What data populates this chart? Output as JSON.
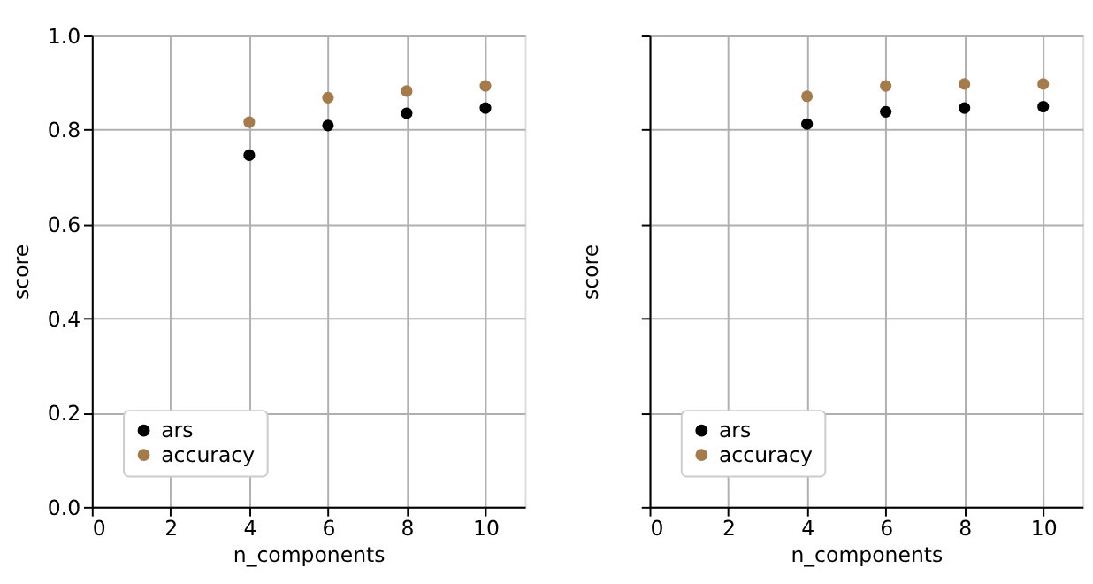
{
  "chart_data": [
    {
      "type": "scatter",
      "xlabel": "n_components",
      "ylabel": "score",
      "x": [
        4,
        6,
        8,
        10
      ],
      "series": [
        {
          "name": "ars",
          "color": "#000000",
          "values": [
            0.746,
            0.809,
            0.835,
            0.846
          ]
        },
        {
          "name": "accuracy",
          "color": "#a57b4b",
          "values": [
            0.816,
            0.868,
            0.882,
            0.893
          ]
        }
      ],
      "xlim": [
        0,
        11
      ],
      "xticks": [
        0,
        2,
        4,
        6,
        8,
        10
      ],
      "ylim": [
        0,
        1
      ],
      "yticks": [
        {
          "value": 0,
          "label": "0.0"
        },
        0.2,
        0.4,
        0.6,
        0.8,
        {
          "value": 1,
          "label": "1.0"
        }
      ],
      "grid": true,
      "legend": "bottom left",
      "marker": "circle"
    },
    {
      "type": "scatter",
      "xlabel": "n_components",
      "ylabel": "score",
      "x": [
        4,
        6,
        8,
        10
      ],
      "series": [
        {
          "name": "ars",
          "color": "#000000",
          "values": [
            0.812,
            0.838,
            0.846,
            0.849
          ]
        },
        {
          "name": "accuracy",
          "color": "#a57b4b",
          "values": [
            0.871,
            0.893,
            0.897,
            0.897
          ]
        }
      ],
      "xlim": [
        0,
        11
      ],
      "xticks": [
        0,
        2,
        4,
        6,
        8,
        10
      ],
      "ylim": [
        0,
        1
      ],
      "yticks": [
        0.0,
        0.2,
        0.4,
        0.6,
        0.8,
        1.0
      ],
      "grid": true,
      "legend": "bottom left",
      "marker": "circle",
      "tick_labels": "x"
    }
  ]
}
